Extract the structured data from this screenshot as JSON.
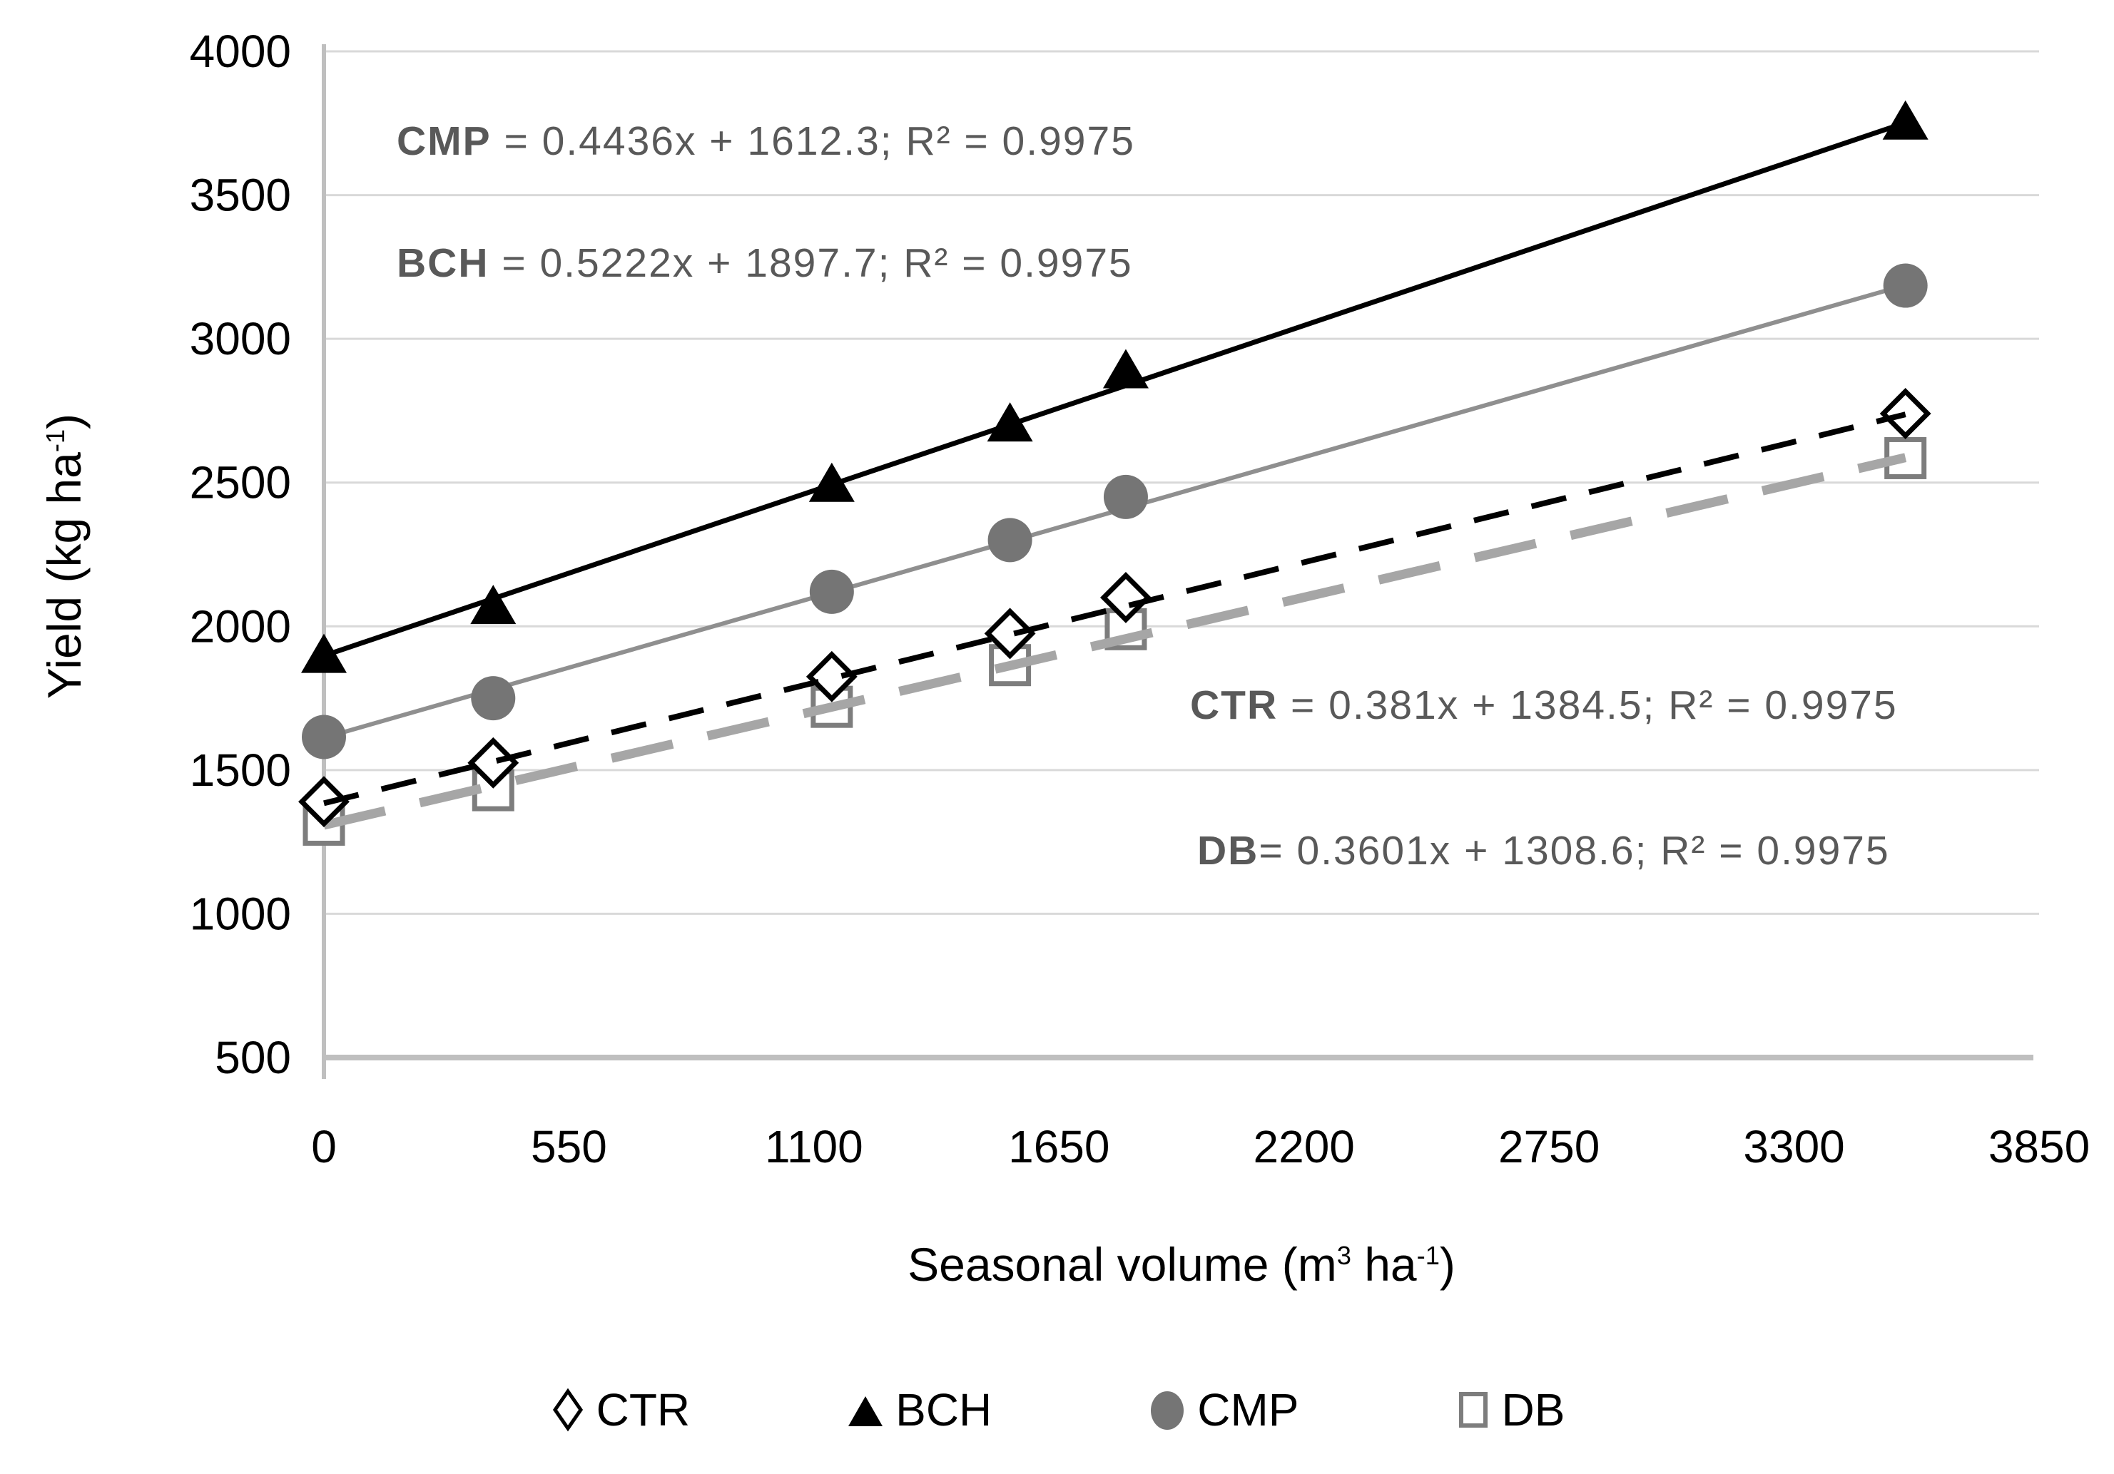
{
  "figure": {
    "y_axis_title": {
      "pre": "Yield (kg ha",
      "sup": "-1",
      "post": ")"
    },
    "x_axis_title": {
      "pre": "Seasonal volume (m",
      "sup1": "3",
      "mid": " ha",
      "sup2": "-1",
      "post": ")"
    }
  },
  "annotations": [
    {
      "series": "CMP",
      "label": "CMP",
      "text": " = 0.4436x + 1612.3; R² = 0.9975"
    },
    {
      "series": "BCH",
      "label": "BCH",
      "text": " = 0.5222x + 1897.7; R² = 0.9975"
    },
    {
      "series": "CTR",
      "label": "CTR",
      "text": " = 0.381x + 1384.5; R² = 0.9975"
    },
    {
      "series": "DB",
      "label": "DB",
      "text": "= 0.3601x + 1308.6; R² = 0.9975"
    }
  ],
  "legend": [
    {
      "label": "CTR",
      "marker": "open-diamond"
    },
    {
      "label": "BCH",
      "marker": "filled-triangle"
    },
    {
      "label": "CMP",
      "marker": "filled-circle"
    },
    {
      "label": "DB",
      "marker": "open-square"
    }
  ],
  "colors": {
    "black": "#000000",
    "cmp_marker": "#757575",
    "cmp_line": "#8f8f8f",
    "db_marker": "#7d7d7d",
    "db_line": "#a6a6a6",
    "gridline": "#d9d9d9",
    "axis": "#bfbfbf",
    "equation_text": "#595959"
  },
  "chart_data": {
    "type": "scatter",
    "title": "",
    "xlabel": "Seasonal volume (m3 ha-1)",
    "ylabel": "Yield (kg ha-1)",
    "xlim": [
      0,
      3850
    ],
    "ylim": [
      500,
      4000
    ],
    "x_ticks": [
      0,
      550,
      1100,
      1650,
      2200,
      2750,
      3300,
      3850
    ],
    "y_ticks": [
      500,
      1000,
      1500,
      2000,
      2500,
      3000,
      3500,
      4000
    ],
    "grid": "horizontal",
    "legend_position": "bottom",
    "x": [
      0,
      380,
      1140,
      1540,
      1800,
      3550
    ],
    "trend_range": [
      0,
      3550
    ],
    "series": [
      {
        "name": "CTR",
        "marker": "open-diamond",
        "color": "#000000",
        "line_color": "#000000",
        "line_style": "dashed",
        "dash": "50 33",
        "line_width": 8,
        "line_on_top": true,
        "values": [
          1390,
          1525,
          1825,
          1975,
          2100,
          2740
        ],
        "trendline": {
          "slope": 0.381,
          "intercept": 1384.5,
          "r2": 0.9975
        }
      },
      {
        "name": "BCH",
        "marker": "filled-triangle",
        "color": "#000000",
        "line_color": "#000000",
        "line_style": "solid",
        "dash": "",
        "line_width": 7,
        "line_on_top": false,
        "values": [
          1900,
          2070,
          2495,
          2705,
          2890,
          3755
        ],
        "trendline": {
          "slope": 0.5222,
          "intercept": 1897.7,
          "r2": 0.9975
        }
      },
      {
        "name": "CMP",
        "marker": "filled-circle",
        "color": "#757575",
        "line_color": "#8f8f8f",
        "line_style": "solid",
        "dash": "",
        "line_width": 6,
        "line_on_top": false,
        "values": [
          1615,
          1750,
          2120,
          2300,
          2450,
          3185
        ],
        "trendline": {
          "slope": 0.4436,
          "intercept": 1612.3,
          "r2": 0.9975
        }
      },
      {
        "name": "DB",
        "marker": "open-square",
        "color": "#7d7d7d",
        "line_color": "#a6a6a6",
        "line_style": "dashed",
        "dash": "88 50",
        "line_width": 13,
        "line_on_top": true,
        "values": [
          1310,
          1430,
          1720,
          1865,
          1990,
          2585
        ],
        "trendline": {
          "slope": 0.3601,
          "intercept": 1308.6,
          "r2": 0.9975
        }
      }
    ]
  }
}
